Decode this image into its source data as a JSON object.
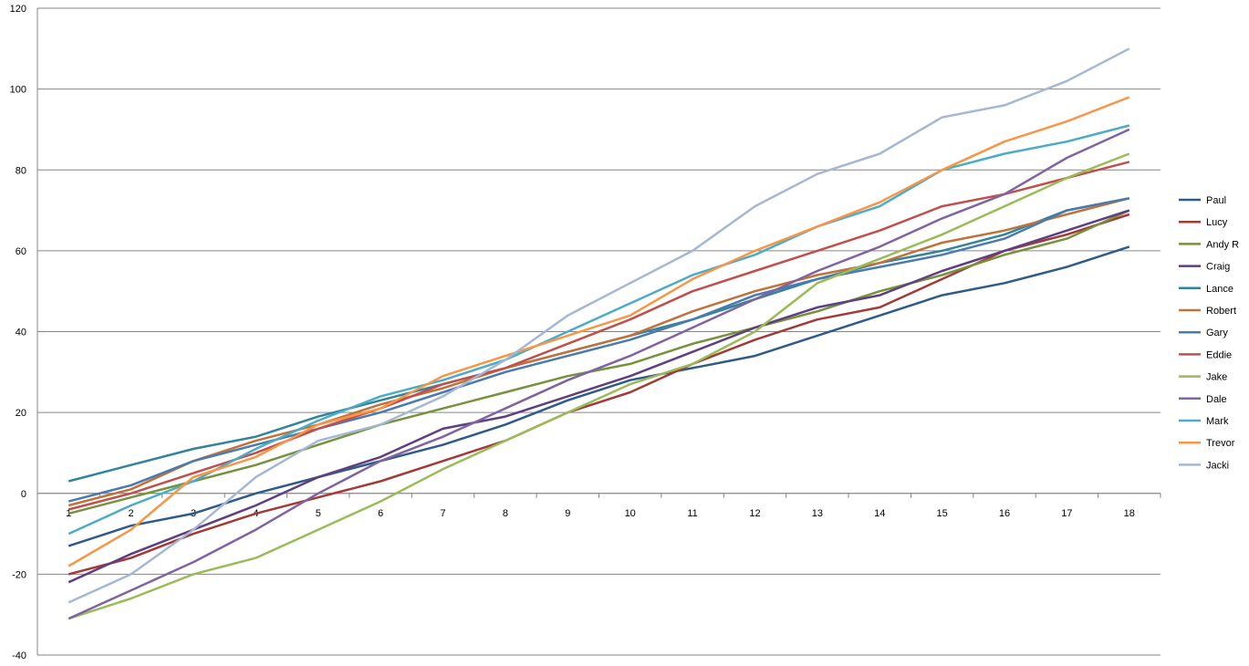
{
  "chart_data": {
    "type": "line",
    "title": "",
    "xlabel": "",
    "ylabel": "",
    "x": [
      1,
      2,
      3,
      4,
      5,
      6,
      7,
      8,
      9,
      10,
      11,
      12,
      13,
      14,
      15,
      16,
      17,
      18
    ],
    "ylim": [
      -40,
      120
    ],
    "yticks": [
      -40,
      -20,
      0,
      20,
      40,
      60,
      80,
      100,
      120
    ],
    "grid": "horizontal",
    "legend_position": "right",
    "series": [
      {
        "name": "Paul",
        "color": "#2E5B8A",
        "values": [
          -13,
          -8,
          -5,
          0,
          4,
          8,
          12,
          17,
          23,
          28,
          31,
          34,
          39,
          44,
          49,
          52,
          56,
          61
        ]
      },
      {
        "name": "Lucy",
        "color": "#A23B38",
        "values": [
          -20,
          -16,
          -10,
          -5,
          -1,
          3,
          8,
          13,
          20,
          25,
          32,
          38,
          43,
          46,
          53,
          60,
          64,
          69
        ]
      },
      {
        "name": "Andy R",
        "color": "#76923C",
        "values": [
          -5,
          -1,
          3,
          7,
          12,
          17,
          21,
          25,
          29,
          32,
          37,
          41,
          45,
          50,
          54,
          59,
          63,
          70
        ]
      },
      {
        "name": "Craig",
        "color": "#5F3F7F",
        "values": [
          -22,
          -15,
          -9,
          -3,
          4,
          9,
          16,
          19,
          24,
          29,
          35,
          41,
          46,
          49,
          55,
          60,
          65,
          70
        ]
      },
      {
        "name": "Lance",
        "color": "#31849B",
        "values": [
          3,
          7,
          11,
          14,
          19,
          23,
          27,
          31,
          35,
          39,
          43,
          48,
          53,
          57,
          60,
          64,
          70,
          73
        ]
      },
      {
        "name": "Robert",
        "color": "#C0723A",
        "values": [
          -3,
          1,
          8,
          13,
          17,
          22,
          26,
          31,
          35,
          39,
          45,
          50,
          54,
          57,
          62,
          65,
          69,
          73
        ]
      },
      {
        "name": "Gary",
        "color": "#4A7AAE",
        "values": [
          -2,
          2,
          8,
          12,
          16,
          20,
          25,
          30,
          34,
          38,
          43,
          49,
          53,
          56,
          59,
          63,
          70,
          73
        ]
      },
      {
        "name": "Eddie",
        "color": "#C0504D",
        "values": [
          -4,
          0,
          5,
          10,
          16,
          21,
          27,
          31,
          37,
          43,
          50,
          55,
          60,
          65,
          71,
          74,
          78,
          82
        ]
      },
      {
        "name": "Jake",
        "color": "#9BBB59",
        "values": [
          -31,
          -26,
          -20,
          -16,
          -9,
          -2,
          6,
          13,
          20,
          27,
          32,
          40,
          52,
          58,
          64,
          71,
          78,
          84
        ]
      },
      {
        "name": "Dale",
        "color": "#8064A2",
        "values": [
          -31,
          -24,
          -17,
          -9,
          0,
          8,
          14,
          21,
          28,
          34,
          41,
          48,
          55,
          61,
          68,
          74,
          83,
          90
        ]
      },
      {
        "name": "Mark",
        "color": "#4BACC6",
        "values": [
          -10,
          -3,
          3,
          11,
          18,
          24,
          28,
          33,
          40,
          47,
          54,
          59,
          66,
          71,
          80,
          84,
          87,
          91
        ]
      },
      {
        "name": "Trevor",
        "color": "#F79646",
        "values": [
          -18,
          -9,
          4,
          9,
          17,
          21,
          29,
          34,
          39,
          44,
          53,
          60,
          66,
          72,
          80,
          87,
          92,
          98
        ]
      },
      {
        "name": "Jacki",
        "color": "#A5B8D3",
        "values": [
          -27,
          -20,
          -9,
          4,
          13,
          17,
          24,
          33,
          44,
          52,
          60,
          71,
          79,
          84,
          93,
          96,
          102,
          110
        ]
      }
    ]
  }
}
